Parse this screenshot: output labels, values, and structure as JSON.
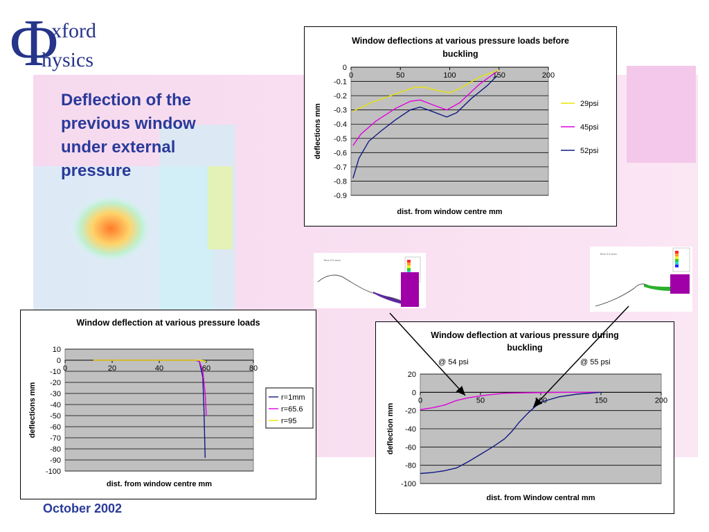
{
  "logo": {
    "line1": "xford",
    "line2": "hysics"
  },
  "slide": {
    "title": "Deflection of the previous window under external pressure",
    "footer": "October 2002"
  },
  "annotations": {
    "psi54": "@ 54 psi",
    "psi55": "@ 55 psi"
  },
  "colors": {
    "title": "#2a3a9a",
    "plot_bg": "#c0c0c0",
    "yellow": "#e6e600",
    "magenta": "#e000e0",
    "navy": "#101880"
  },
  "chart_data": [
    {
      "id": "top",
      "type": "line",
      "title": "Window deflections at various pressure loads before buckling",
      "xlabel": "dist. from window centre mm",
      "ylabel": "deflections mm",
      "xlim": [
        0,
        200
      ],
      "ylim": [
        -0.9,
        0
      ],
      "xticks": [
        0,
        50,
        100,
        150,
        200
      ],
      "yticks": [
        0,
        -0.1,
        -0.2,
        -0.3,
        -0.4,
        -0.5,
        -0.6,
        -0.7,
        -0.8,
        -0.9
      ],
      "legend": "right",
      "series": [
        {
          "name": "29psi",
          "color": "#e6e600",
          "points": [
            [
              2,
              -0.31
            ],
            [
              20,
              -0.25
            ],
            [
              40,
              -0.2
            ],
            [
              65,
              -0.14
            ],
            [
              75,
              -0.14
            ],
            [
              85,
              -0.16
            ],
            [
              100,
              -0.18
            ],
            [
              110,
              -0.15
            ],
            [
              130,
              -0.07
            ],
            [
              150,
              -0.02
            ]
          ]
        },
        {
          "name": "45psi",
          "color": "#e000e0",
          "points": [
            [
              2,
              -0.55
            ],
            [
              10,
              -0.47
            ],
            [
              25,
              -0.38
            ],
            [
              45,
              -0.29
            ],
            [
              60,
              -0.24
            ],
            [
              70,
              -0.23
            ],
            [
              85,
              -0.27
            ],
            [
              97,
              -0.3
            ],
            [
              110,
              -0.25
            ],
            [
              130,
              -0.12
            ],
            [
              148,
              -0.03
            ]
          ]
        },
        {
          "name": "52psi",
          "color": "#101880",
          "points": [
            [
              2,
              -0.78
            ],
            [
              8,
              -0.64
            ],
            [
              18,
              -0.52
            ],
            [
              30,
              -0.45
            ],
            [
              45,
              -0.37
            ],
            [
              60,
              -0.3
            ],
            [
              70,
              -0.28
            ],
            [
              82,
              -0.31
            ],
            [
              97,
              -0.35
            ],
            [
              107,
              -0.32
            ],
            [
              122,
              -0.22
            ],
            [
              138,
              -0.13
            ],
            [
              148,
              -0.06
            ]
          ]
        }
      ]
    },
    {
      "id": "left",
      "type": "line",
      "title": "Window deflection at various pressure loads",
      "xlabel": "dist. from window centre mm",
      "ylabel": "deflections mm",
      "xlim": [
        0,
        80
      ],
      "ylim": [
        -100,
        10
      ],
      "xticks": [
        0,
        20,
        40,
        60,
        80
      ],
      "yticks": [
        10,
        0,
        -10,
        -20,
        -30,
        -40,
        -50,
        -60,
        -70,
        -80,
        -90,
        -100
      ],
      "legend": "right",
      "series": [
        {
          "name": "r=1mm",
          "color": "#101880",
          "points": [
            [
              12,
              0
            ],
            [
              40,
              0
            ],
            [
              55,
              0
            ],
            [
              57,
              -1
            ],
            [
              58.5,
              -15
            ],
            [
              59,
              -45
            ],
            [
              59.5,
              -88
            ]
          ]
        },
        {
          "name": "r=65.6",
          "color": "#e000e0",
          "points": [
            [
              12,
              0
            ],
            [
              40,
              0
            ],
            [
              55,
              0
            ],
            [
              57,
              -0.5
            ],
            [
              58.5,
              -10
            ],
            [
              59.5,
              -30
            ],
            [
              60,
              -50
            ]
          ]
        },
        {
          "name": "r=95",
          "color": "#e6e600",
          "points": [
            [
              12,
              0
            ],
            [
              40,
              0
            ],
            [
              57,
              0
            ],
            [
              59,
              -0.5
            ],
            [
              60,
              -1
            ]
          ]
        }
      ]
    },
    {
      "id": "right",
      "type": "line",
      "title": "Window deflection at various pressure during buckling",
      "xlabel": "dist. from Window central mm",
      "ylabel": "deflection mm",
      "xlim": [
        0,
        200
      ],
      "ylim": [
        -100,
        20
      ],
      "xticks": [
        0,
        50,
        100,
        150,
        200
      ],
      "yticks": [
        20,
        0,
        -20,
        -40,
        -60,
        -80,
        -100
      ],
      "legend": "none",
      "series": [
        {
          "name": "",
          "color": "#e000e0",
          "points": [
            [
              0,
              -19
            ],
            [
              10,
              -17
            ],
            [
              20,
              -14
            ],
            [
              30,
              -9
            ],
            [
              40,
              -6
            ],
            [
              55,
              -3
            ],
            [
              70,
              -1
            ],
            [
              90,
              -0.5
            ],
            [
              120,
              0
            ],
            [
              150,
              0
            ]
          ]
        },
        {
          "name": "",
          "color": "#101880",
          "points": [
            [
              0,
              -89
            ],
            [
              10,
              -88
            ],
            [
              20,
              -86
            ],
            [
              30,
              -83
            ],
            [
              40,
              -76
            ],
            [
              50,
              -68
            ],
            [
              60,
              -60
            ],
            [
              70,
              -51
            ],
            [
              76,
              -43
            ],
            [
              82,
              -33
            ],
            [
              90,
              -22
            ],
            [
              96,
              -15
            ],
            [
              102,
              -10
            ],
            [
              115,
              -5
            ],
            [
              130,
              -2
            ],
            [
              150,
              0
            ]
          ]
        }
      ]
    }
  ]
}
